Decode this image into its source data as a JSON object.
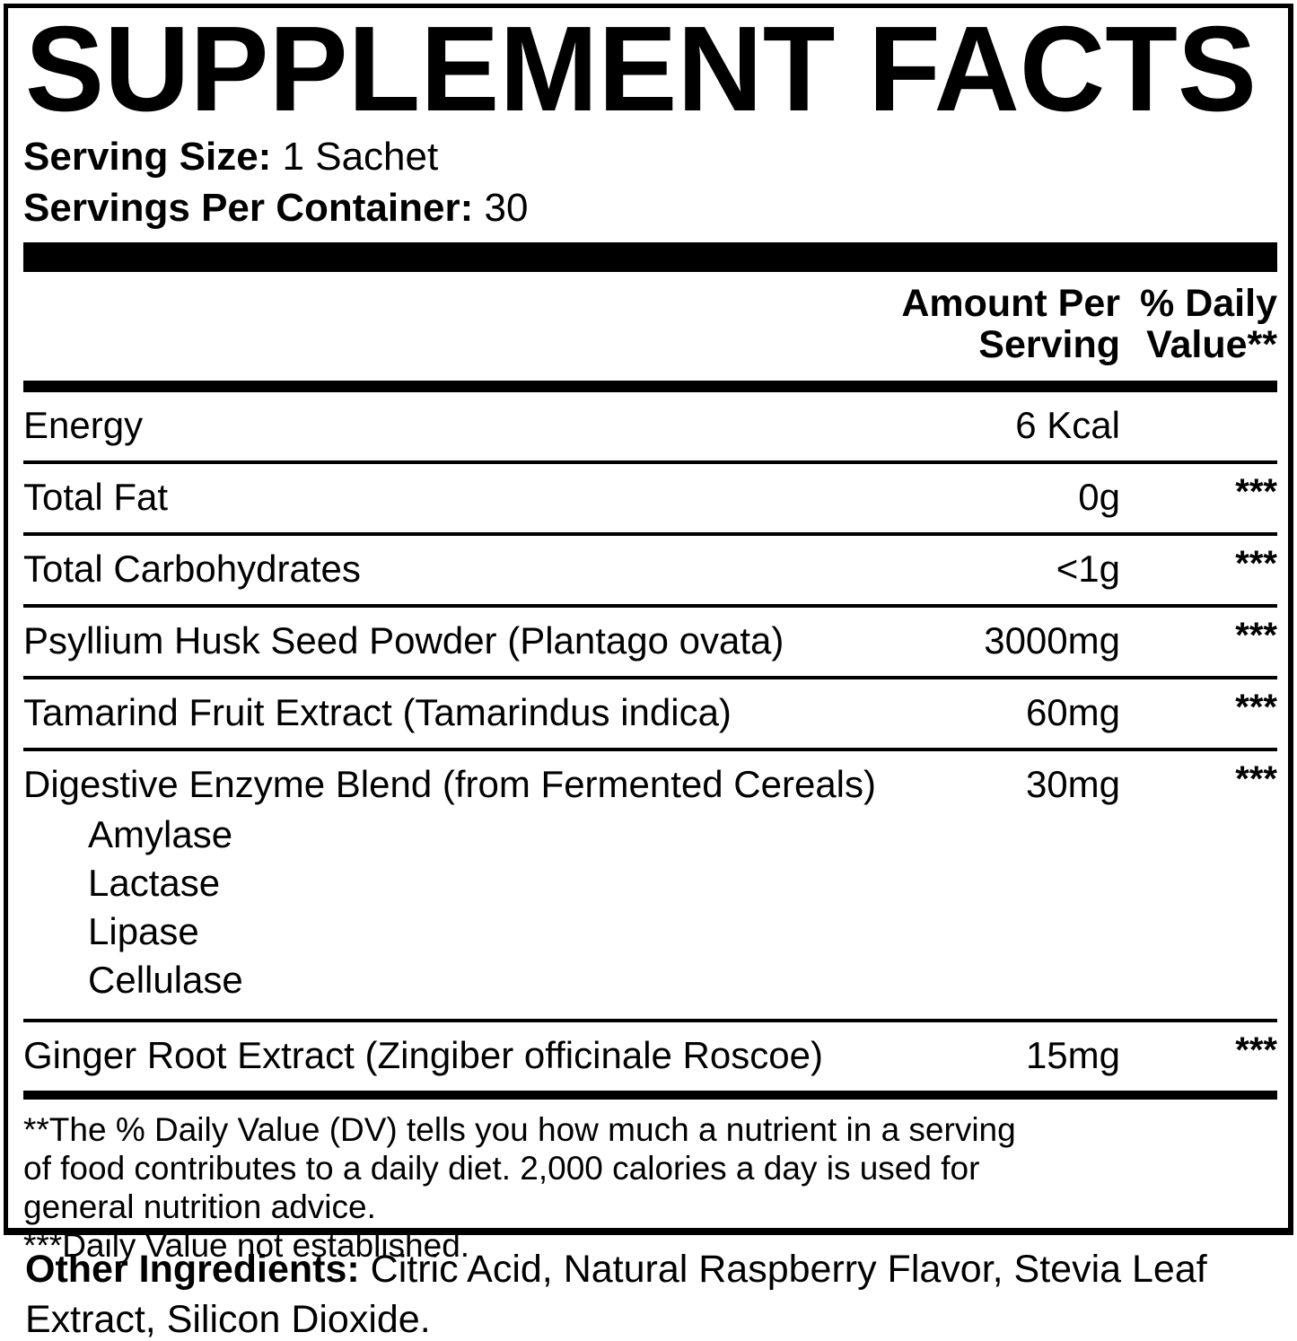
{
  "header": {
    "title": "SUPPLEMENT FACTS"
  },
  "serving_info": {
    "serving_size_label": "Serving Size:",
    "serving_size_value": "1 Sachet",
    "servings_per_container_label": "Servings Per Container:",
    "servings_per_container_value": "30"
  },
  "table": {
    "amount_header": "Amount Per\nServing",
    "dv_header": "% Daily\nValue**",
    "rows": [
      {
        "name": "Energy",
        "amount": "6 Kcal",
        "dv": ""
      },
      {
        "name": "Total Fat",
        "amount": "0g",
        "dv": "***"
      },
      {
        "name": "Total Carbohydrates",
        "amount": "<1g",
        "dv": "***"
      },
      {
        "name": "Psyllium Husk Seed Powder (Plantago ovata)",
        "amount": "3000mg",
        "dv": "***"
      },
      {
        "name": "Tamarind Fruit Extract (Tamarindus indica)",
        "amount": "60mg",
        "dv": "***"
      },
      {
        "name": "Digestive Enzyme Blend (from Fermented Cereals)",
        "amount": "30mg",
        "dv": "***",
        "sub": [
          "Amylase",
          "Lactase",
          "Lipase",
          "Cellulase"
        ]
      },
      {
        "name": "Ginger Root Extract (Zingiber officinale Roscoe)",
        "amount": "15mg",
        "dv": "***"
      }
    ]
  },
  "footnotes": {
    "daily_value_note": "**The % Daily Value (DV) tells you how much a nutrient in a serving\nof food contributes to a daily diet. 2,000 calories a day is used for\ngeneral nutrition advice.",
    "not_established_note": "***Daily Value not established."
  },
  "other_ingredients": {
    "label": "Other Ingredients:",
    "line1_rest": " Citric Acid, Natural Raspberry Flavor, Stevia Leaf",
    "line2": "Extract, Silicon Dioxide."
  },
  "colors": {
    "text": "#000000",
    "background": "#ffffff"
  }
}
